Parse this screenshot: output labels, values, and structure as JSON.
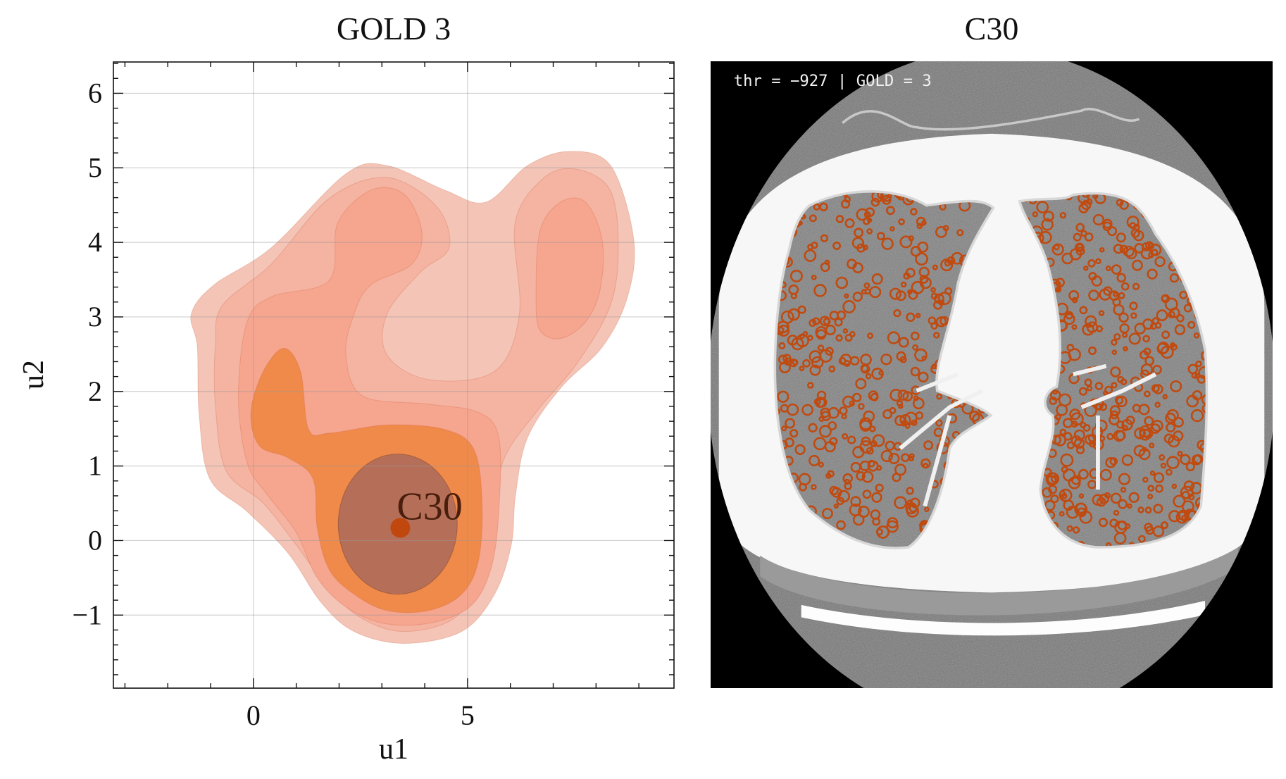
{
  "chart_data": [
    {
      "type": "contour",
      "title": "GOLD 3",
      "xlabel": "u1",
      "ylabel": "u2",
      "xlim": [
        -3.27,
        9.82
      ],
      "ylim": [
        -1.98,
        6.42
      ],
      "grid": true,
      "xticks": [
        0,
        5
      ],
      "xtick_labels": [
        "0",
        "5"
      ],
      "yticks": [
        -1,
        0,
        1,
        2,
        3,
        4,
        5,
        6
      ],
      "ytick_labels": [
        "−1",
        "0",
        "1",
        "2",
        "3",
        "4",
        "5",
        "6"
      ],
      "levels": [
        {
          "color": "#f4c4b7",
          "polygons": [
            [
              [
                -1.45,
                3.04
              ],
              [
                -0.92,
                3.43
              ],
              [
                0.42,
                3.93
              ],
              [
                2.16,
                4.92
              ],
              [
                3.12,
                5.03
              ],
              [
                4.47,
                4.7
              ],
              [
                5.43,
                4.54
              ],
              [
                6.4,
                5.03
              ],
              [
                7.37,
                5.22
              ],
              [
                8.34,
                5.03
              ],
              [
                8.88,
                4.04
              ],
              [
                8.73,
                3.26
              ],
              [
                8.15,
                2.6
              ],
              [
                7.18,
                2.05
              ],
              [
                6.4,
                1.38
              ],
              [
                6.12,
                0.61
              ],
              [
                6.02,
                -0.06
              ],
              [
                5.63,
                -0.72
              ],
              [
                4.86,
                -1.22
              ],
              [
                3.51,
                -1.38
              ],
              [
                2.35,
                -1.22
              ],
              [
                1.58,
                -0.83
              ],
              [
                0.81,
                -0.17
              ],
              [
                -0.15,
                0.39
              ],
              [
                -1.02,
                0.83
              ],
              [
                -1.27,
                1.71
              ],
              [
                -1.31,
                2.6
              ]
            ]
          ]
        },
        {
          "color": "#f5b3a1",
          "polygons": [
            [
              [
                -0.73,
                3.15
              ],
              [
                0.42,
                3.71
              ],
              [
                1.77,
                4.59
              ],
              [
                3.12,
                4.87
              ],
              [
                4.28,
                4.48
              ],
              [
                4.57,
                3.93
              ],
              [
                3.9,
                3.6
              ],
              [
                3.12,
                3.04
              ],
              [
                3.12,
                2.49
              ],
              [
                4.09,
                2.16
              ],
              [
                5.63,
                2.27
              ],
              [
                6.21,
                3.04
              ],
              [
                6.11,
                4.26
              ],
              [
                6.79,
                4.87
              ],
              [
                7.56,
                4.98
              ],
              [
                8.33,
                4.7
              ],
              [
                8.52,
                3.93
              ],
              [
                8.33,
                3.15
              ],
              [
                7.56,
                2.38
              ],
              [
                6.6,
                1.72
              ],
              [
                5.82,
                1.05
              ],
              [
                5.63,
                0.17
              ],
              [
                5.34,
                -0.5
              ],
              [
                4.67,
                -1.05
              ],
              [
                3.51,
                -1.22
              ],
              [
                2.55,
                -1.05
              ],
              [
                1.77,
                -0.66
              ],
              [
                1.0,
                -0.06
              ],
              [
                0.23,
                0.5
              ],
              [
                -0.64,
                0.94
              ],
              [
                -0.89,
                1.83
              ],
              [
                -0.89,
                2.6
              ]
            ]
          ]
        },
        {
          "color": "#f6a58f",
          "polygons": [
            [
              [
                6.6,
                3.27
              ],
              [
                6.69,
                4.15
              ],
              [
                7.17,
                4.54
              ],
              [
                7.75,
                4.54
              ],
              [
                8.14,
                4.04
              ],
              [
                8.1,
                3.38
              ],
              [
                7.75,
                2.93
              ],
              [
                7.17,
                2.71
              ],
              [
                6.69,
                2.82
              ]
            ],
            [
              [
                -0.35,
                1.94
              ],
              [
                -0.15,
                2.93
              ],
              [
                0.42,
                3.27
              ],
              [
                1.77,
                3.49
              ],
              [
                1.97,
                4.26
              ],
              [
                2.74,
                4.7
              ],
              [
                3.51,
                4.65
              ],
              [
                3.93,
                4.15
              ],
              [
                3.7,
                3.71
              ],
              [
                2.74,
                3.43
              ],
              [
                2.35,
                3.04
              ],
              [
                2.16,
                2.49
              ],
              [
                2.55,
                1.94
              ],
              [
                4.09,
                1.83
              ],
              [
                5.25,
                1.72
              ],
              [
                5.73,
                1.38
              ],
              [
                5.73,
                0.39
              ],
              [
                5.54,
                -0.39
              ],
              [
                5.05,
                -0.89
              ],
              [
                4.09,
                -1.11
              ],
              [
                3.03,
                -1.11
              ],
              [
                2.16,
                -0.89
              ],
              [
                1.49,
                -0.5
              ],
              [
                1.0,
                0.11
              ],
              [
                0.33,
                0.61
              ],
              [
                -0.15,
                1.05
              ]
            ]
          ]
        },
        {
          "color": "#ef8a4a",
          "polygons": [
            [
              [
                -0.06,
                1.72
              ],
              [
                0.23,
                2.27
              ],
              [
                0.71,
                2.58
              ],
              [
                1.1,
                2.27
              ],
              [
                1.29,
                1.49
              ],
              [
                1.77,
                1.44
              ],
              [
                3.12,
                1.55
              ],
              [
                4.47,
                1.49
              ],
              [
                5.15,
                1.22
              ],
              [
                5.34,
                0.5
              ],
              [
                5.25,
                -0.28
              ],
              [
                4.86,
                -0.72
              ],
              [
                4.09,
                -0.94
              ],
              [
                3.12,
                -0.94
              ],
              [
                2.35,
                -0.72
              ],
              [
                1.77,
                -0.39
              ],
              [
                1.49,
                0.17
              ],
              [
                1.39,
                0.83
              ],
              [
                0.81,
                1.11
              ],
              [
                0.14,
                1.27
              ]
            ]
          ]
        }
      ],
      "core_ellipse": {
        "center": [
          3.37,
          0.22
        ],
        "radius": [
          1.39,
          0.94
        ],
        "color": "#b56f58"
      },
      "points": [
        {
          "label": "C30",
          "u1": 3.43,
          "u2": 0.17,
          "color": "#c0470e"
        }
      ]
    }
  ],
  "right_panel": {
    "title": "C30",
    "overlay_text": "thr = −927 | GOLD = 3",
    "overlay_color": "#c04a0f"
  }
}
